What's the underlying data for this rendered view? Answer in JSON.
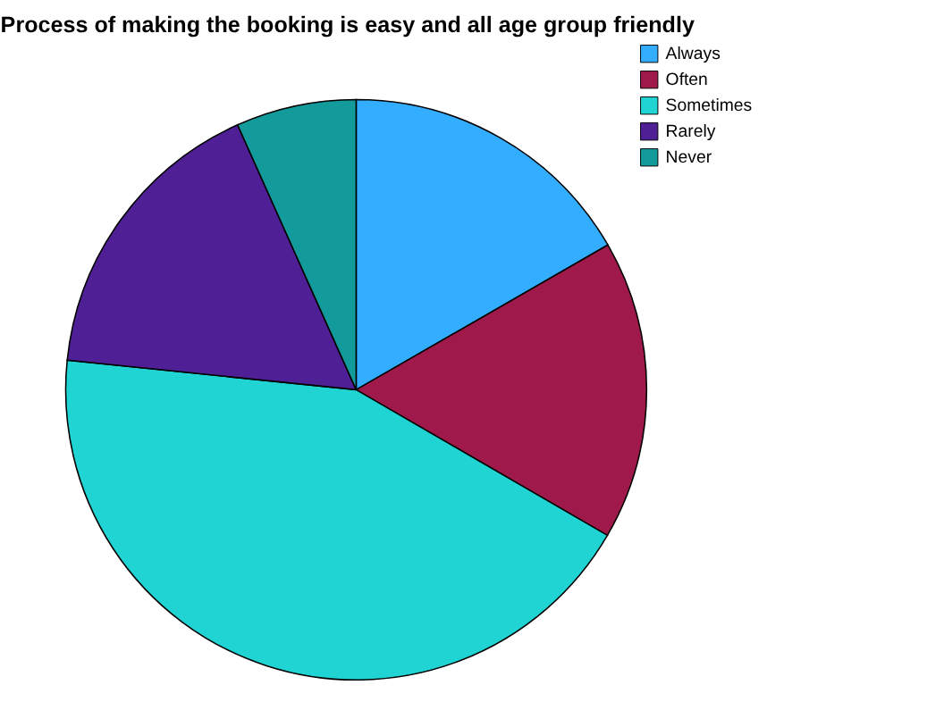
{
  "chart_data": {
    "type": "pie",
    "title": "Process of making the booking is easy and all age group friendly",
    "categories": [
      "Always",
      "Often",
      "Sometimes",
      "Rarely",
      "Never"
    ],
    "values": [
      16.7,
      16.7,
      43.3,
      16.7,
      6.7
    ],
    "colors": [
      "#33adff",
      "#a0194b",
      "#21d4d4",
      "#4f1f96",
      "#139b9b"
    ],
    "legend": "top right"
  }
}
